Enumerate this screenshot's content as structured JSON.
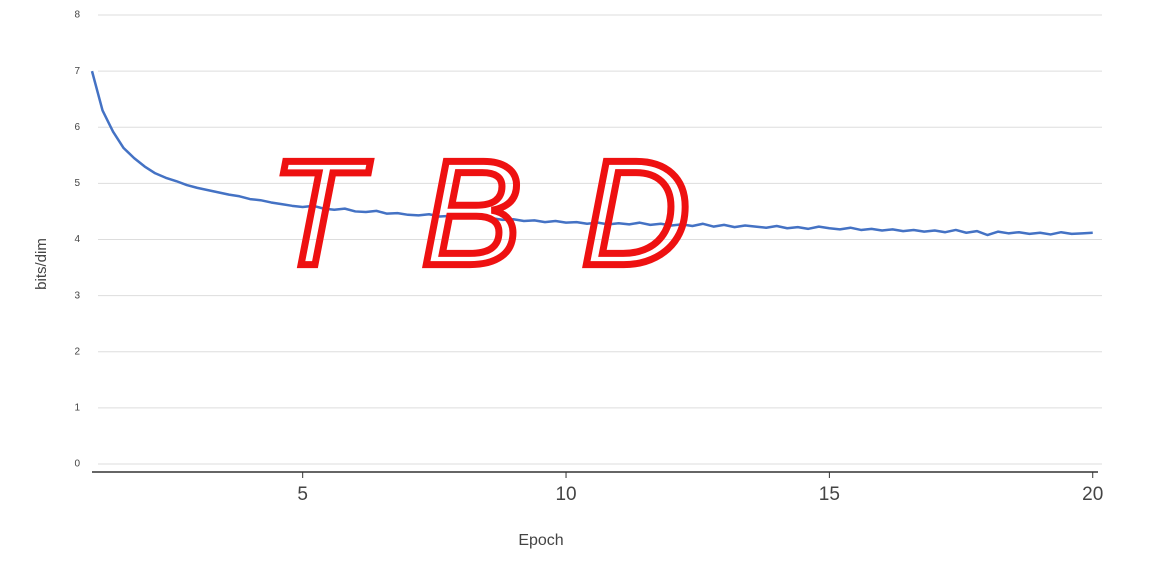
{
  "chart_data": {
    "type": "line",
    "xlabel": "Epoch",
    "ylabel": "bits/dim",
    "annotation": "TBD",
    "x": [
      1.0,
      1.2,
      1.4,
      1.6,
      1.8,
      2.0,
      2.2,
      2.4,
      2.6,
      2.8,
      3.0,
      3.2,
      3.4,
      3.6,
      3.8,
      4.0,
      4.2,
      4.4,
      4.6,
      4.8,
      5.0,
      5.2,
      5.4,
      5.6,
      5.8,
      6.0,
      6.2,
      6.4,
      6.6,
      6.8,
      7.0,
      7.2,
      7.4,
      7.6,
      7.8,
      8.0,
      8.2,
      8.4,
      8.6,
      8.8,
      9.0,
      9.2,
      9.4,
      9.6,
      9.8,
      10.0,
      10.2,
      10.4,
      10.6,
      10.8,
      11.0,
      11.2,
      11.4,
      11.6,
      11.8,
      12.0,
      12.2,
      12.4,
      12.6,
      12.8,
      13.0,
      13.2,
      13.4,
      13.6,
      13.8,
      14.0,
      14.2,
      14.4,
      14.6,
      14.8,
      15.0,
      15.2,
      15.4,
      15.6,
      15.8,
      16.0,
      16.2,
      16.4,
      16.6,
      16.8,
      17.0,
      17.2,
      17.4,
      17.6,
      17.8,
      18.0,
      18.2,
      18.4,
      18.6,
      18.8,
      19.0,
      19.2,
      19.4,
      19.6,
      19.8,
      20.0
    ],
    "series": [
      {
        "color": "#4472c4",
        "values": [
          7.0,
          6.3,
          5.92,
          5.63,
          5.45,
          5.3,
          5.18,
          5.1,
          5.04,
          4.97,
          4.92,
          4.88,
          4.84,
          4.8,
          4.77,
          4.72,
          4.7,
          4.66,
          4.63,
          4.6,
          4.58,
          4.6,
          4.55,
          4.53,
          4.55,
          4.5,
          4.49,
          4.51,
          4.46,
          4.47,
          4.44,
          4.43,
          4.45,
          4.41,
          4.42,
          4.39,
          4.4,
          4.37,
          4.38,
          4.35,
          4.36,
          4.33,
          4.34,
          4.31,
          4.33,
          4.3,
          4.31,
          4.28,
          4.3,
          4.27,
          4.29,
          4.27,
          4.3,
          4.26,
          4.28,
          4.25,
          4.27,
          4.24,
          4.28,
          4.23,
          4.26,
          4.22,
          4.25,
          4.23,
          4.21,
          4.24,
          4.2,
          4.22,
          4.19,
          4.23,
          4.2,
          4.18,
          4.21,
          4.17,
          4.19,
          4.16,
          4.18,
          4.15,
          4.17,
          4.14,
          4.16,
          4.13,
          4.17,
          4.12,
          4.15,
          4.08,
          4.14,
          4.11,
          4.13,
          4.1,
          4.12,
          4.09,
          4.13,
          4.1,
          4.11,
          4.12
        ]
      }
    ],
    "xlim": [
      1,
      20.1
    ],
    "xticks": [
      5,
      10,
      15,
      20
    ],
    "ylim": [
      0,
      8
    ],
    "yticks": [
      0,
      1,
      2,
      3,
      4,
      5,
      6,
      7,
      8
    ],
    "grid": true
  }
}
